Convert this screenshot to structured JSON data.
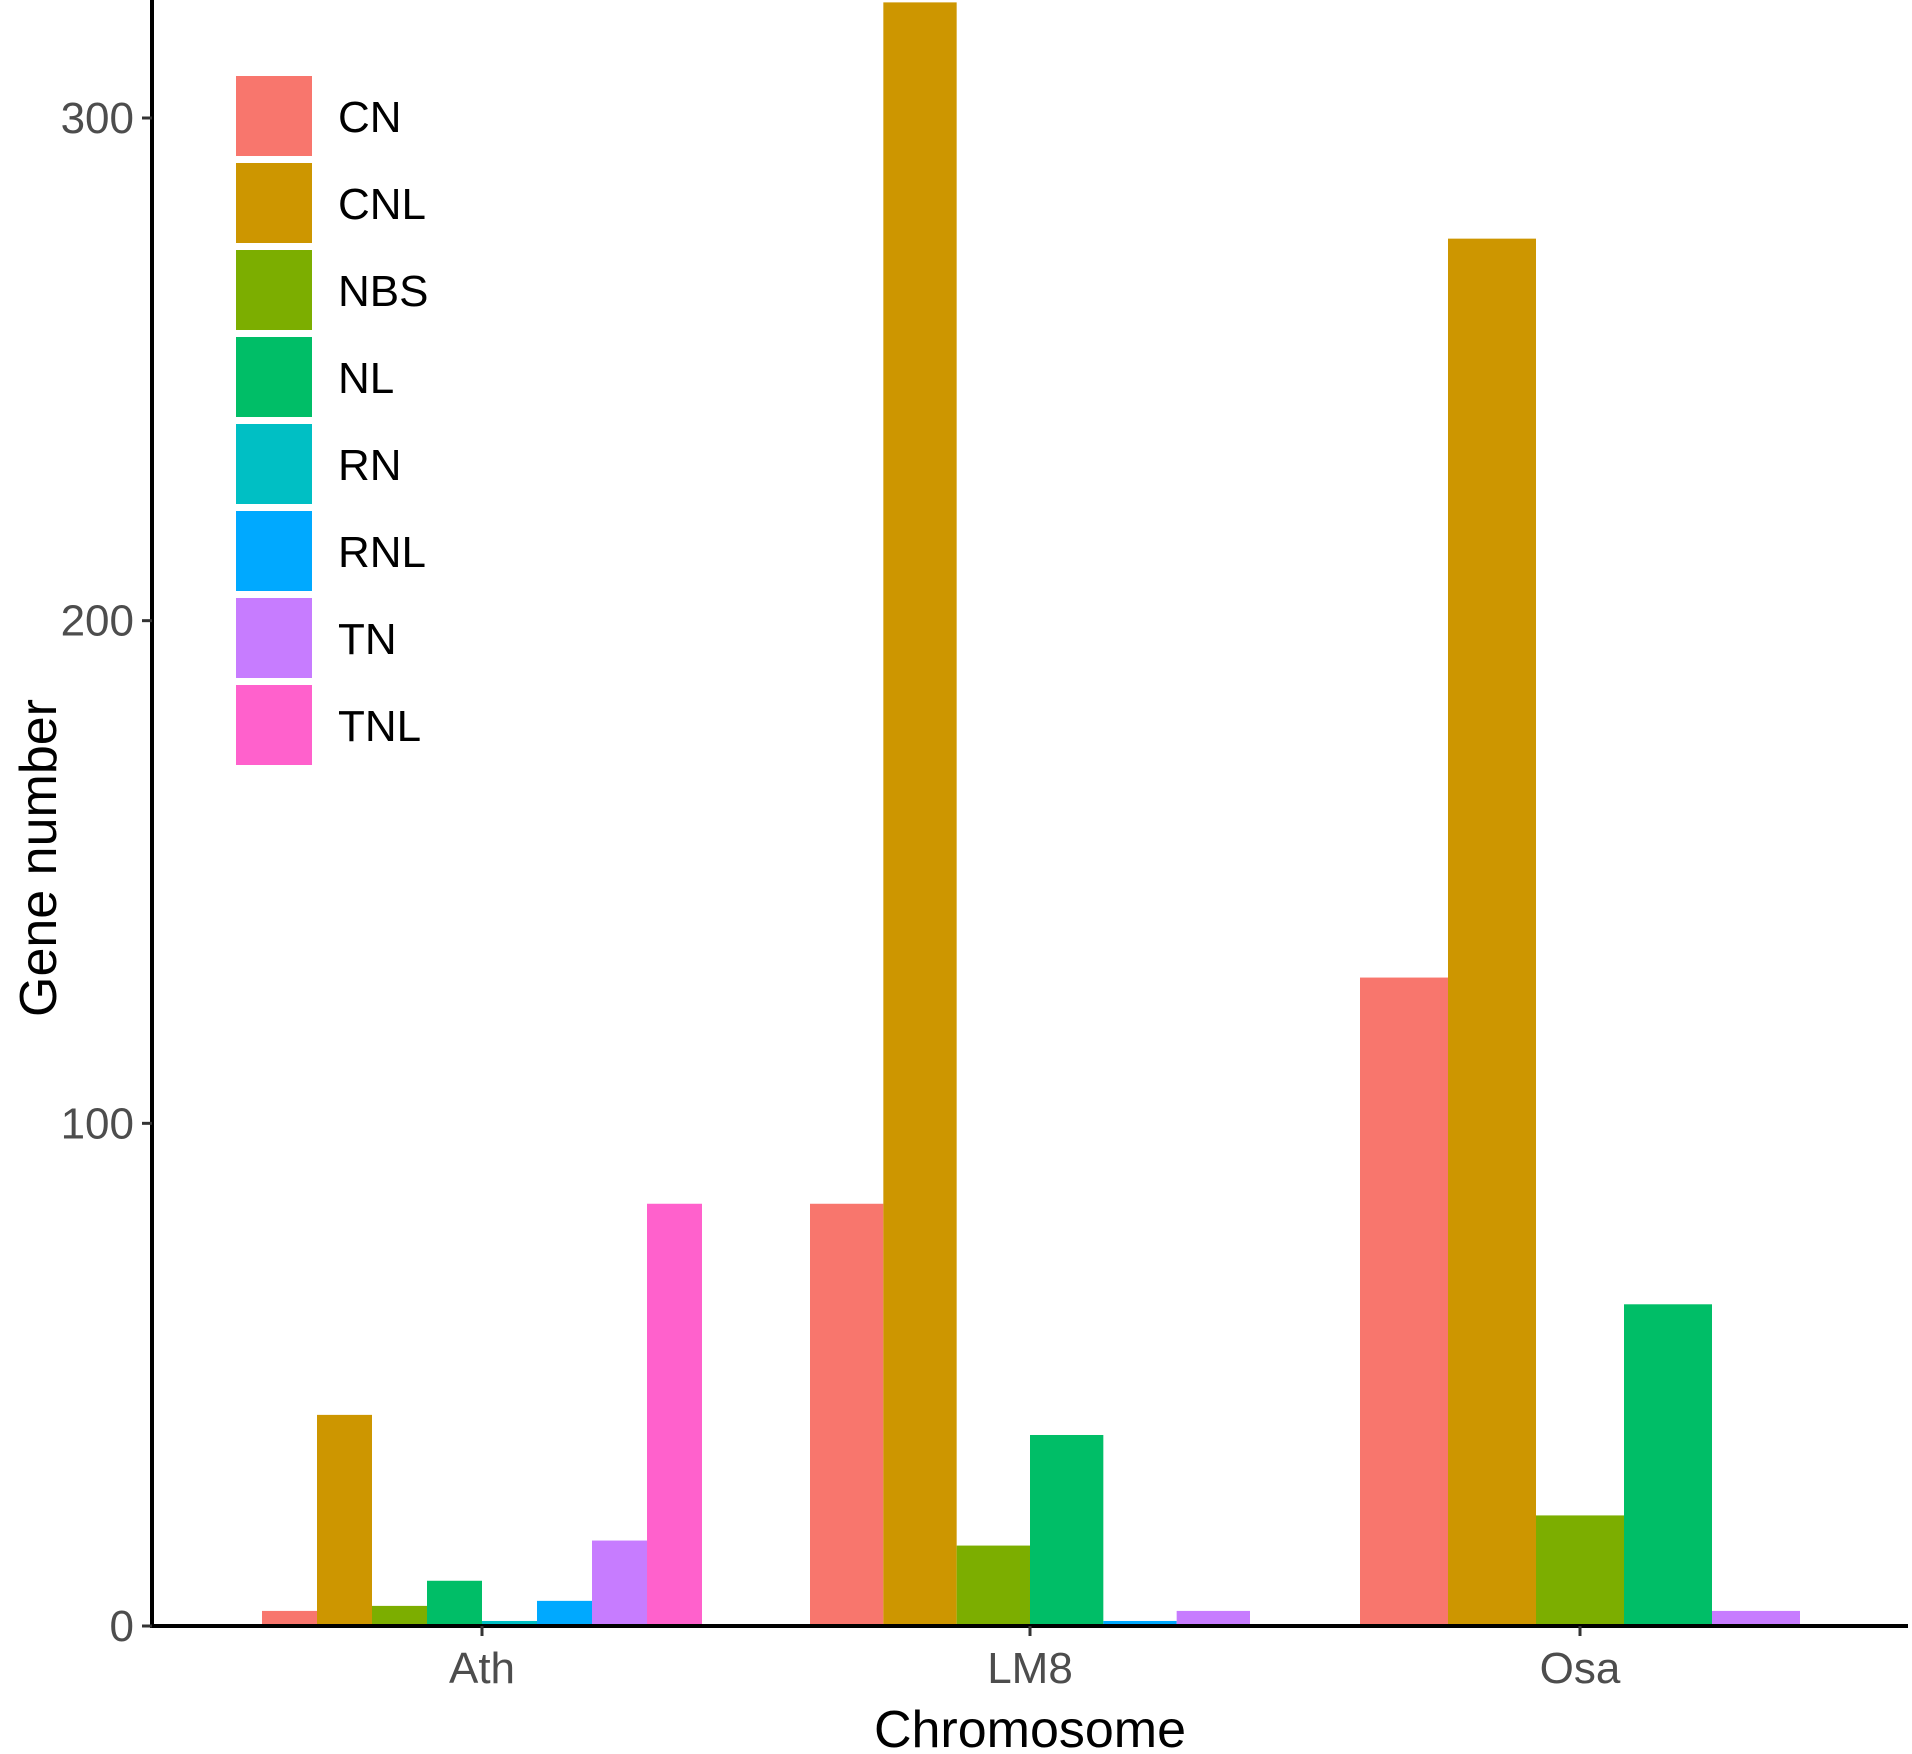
{
  "chart_data": {
    "type": "bar",
    "title": "",
    "xlabel": "Chromosome",
    "ylabel": "Gene number",
    "ylim": [
      0,
      323
    ],
    "yticks": [
      0,
      100,
      200,
      300
    ],
    "categories": [
      "Ath",
      "LM8",
      "Osa"
    ],
    "grid": false,
    "legend_position": "top-left",
    "series": [
      {
        "name": "CN",
        "color": "#F8766D",
        "values": [
          3,
          84,
          129
        ]
      },
      {
        "name": "CNL",
        "color": "#CD9600",
        "values": [
          42,
          323,
          276
        ]
      },
      {
        "name": "NBS",
        "color": "#7CAE00",
        "values": [
          4,
          16,
          22
        ]
      },
      {
        "name": "NL",
        "color": "#00BE67",
        "values": [
          9,
          38,
          64
        ]
      },
      {
        "name": "RN",
        "color": "#00BFC4",
        "values": [
          1,
          0,
          0
        ]
      },
      {
        "name": "RNL",
        "color": "#00A9FF",
        "values": [
          5,
          1,
          0
        ]
      },
      {
        "name": "TN",
        "color": "#C77CFF",
        "values": [
          17,
          3,
          3
        ]
      },
      {
        "name": "TNL",
        "color": "#FF61CC",
        "values": [
          84,
          0,
          0
        ]
      }
    ]
  }
}
